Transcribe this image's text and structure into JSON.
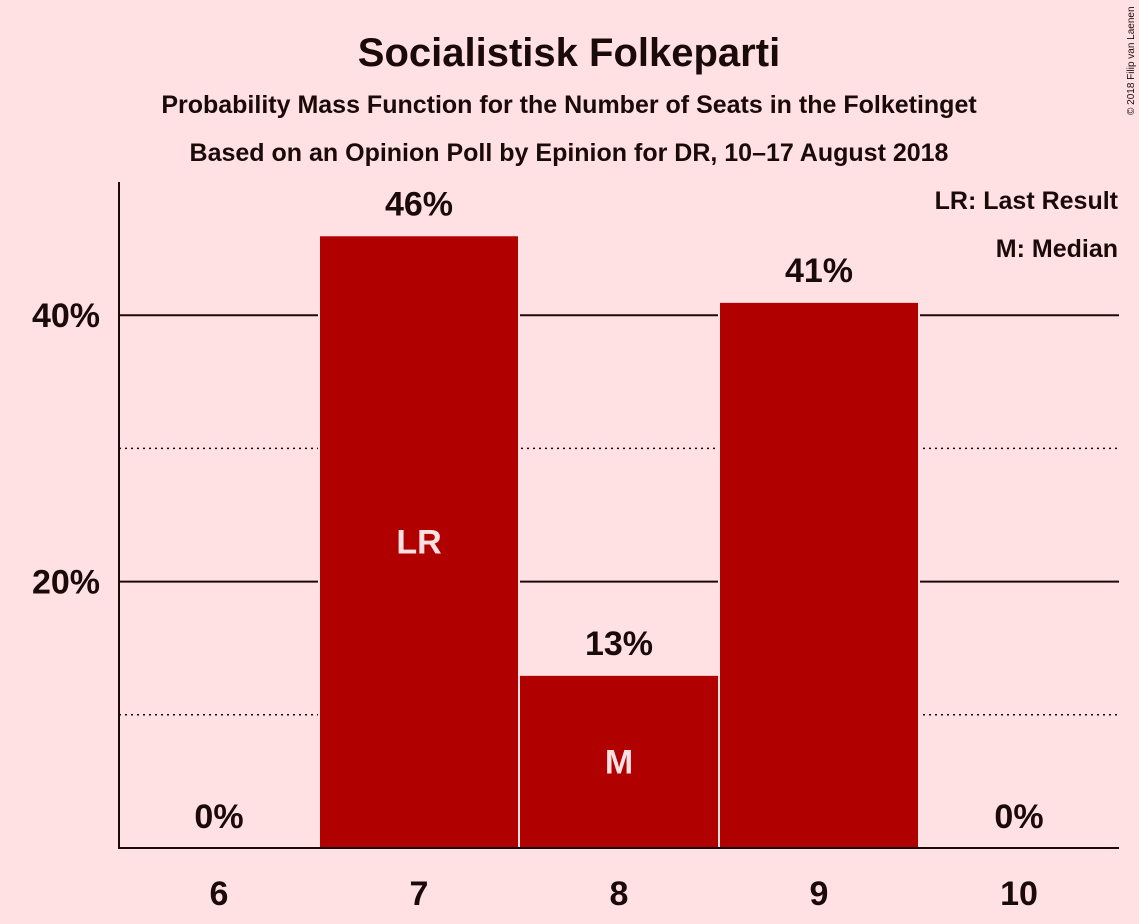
{
  "colors": {
    "background": "#ffe1e4",
    "bar": "#b00000",
    "text": "#1a0a0a",
    "in_bar_text": "#ffe1e4"
  },
  "chart_data": {
    "type": "bar",
    "title": "Socialistisk Folkeparti",
    "subtitle": "Probability Mass Function for the Number of Seats in the Folketinget",
    "subtitle2": "Based on an Opinion Poll by Epinion for DR, 10–17 August 2018",
    "copyright": "© 2018 Filip van Laenen",
    "legend": [
      "LR: Last Result",
      "M: Median"
    ],
    "legend_position": "top-right",
    "categories": [
      "6",
      "7",
      "8",
      "9",
      "10"
    ],
    "values": [
      0,
      46,
      13,
      41,
      0
    ],
    "value_labels": [
      "0%",
      "46%",
      "13%",
      "41%",
      "0%"
    ],
    "in_bar_labels": [
      "",
      "LR",
      "M",
      "",
      ""
    ],
    "ylim": [
      0,
      50
    ],
    "yticks": [
      {
        "value": 20,
        "label": "20%",
        "style": "solid"
      },
      {
        "value": 40,
        "label": "40%",
        "style": "solid"
      }
    ],
    "ygrid_dotted": [
      10,
      30
    ],
    "xlabel": "",
    "ylabel": ""
  }
}
